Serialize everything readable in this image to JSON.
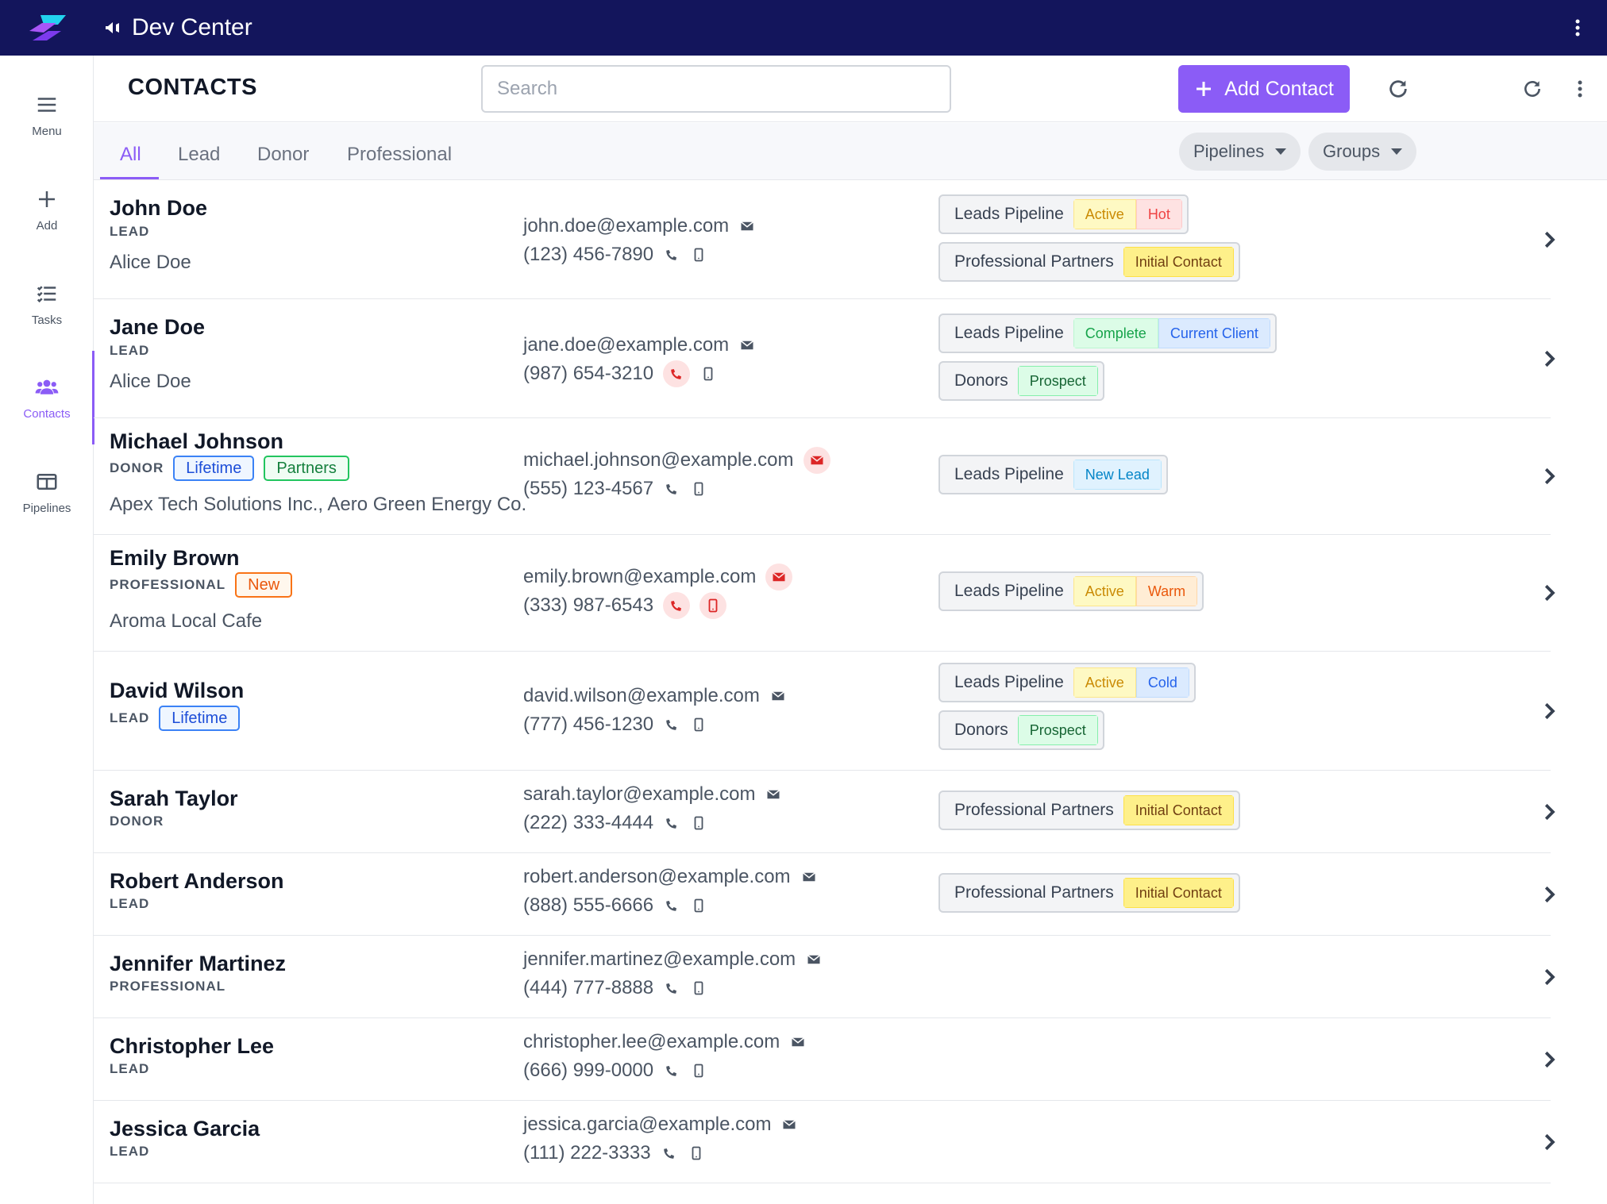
{
  "app": {
    "title": "Dev Center"
  },
  "nav": {
    "menu": "Menu",
    "add": "Add",
    "tasks": "Tasks",
    "contacts": "Contacts",
    "pipelines": "Pipelines"
  },
  "header": {
    "title": "CONTACTS",
    "search_placeholder": "Search",
    "add_label": "Add Contact"
  },
  "tabs": [
    "All",
    "Lead",
    "Donor",
    "Professional"
  ],
  "filters": {
    "pipelines": "Pipelines",
    "groups": "Groups"
  },
  "contacts": [
    {
      "name": "John Doe",
      "type": "LEAD",
      "company": "Alice Doe",
      "email": "john.doe@example.com",
      "phone": "(123) 456-7890",
      "pipelines": [
        {
          "name": "Leads Pipeline",
          "stages": [
            "Active",
            "Hot"
          ]
        },
        {
          "name": "Professional Partners",
          "stages": [
            "Initial Contact"
          ]
        }
      ]
    },
    {
      "name": "Jane Doe",
      "type": "LEAD",
      "company": "Alice Doe",
      "email": "jane.doe@example.com",
      "phone": "(987) 654-3210",
      "pipelines": [
        {
          "name": "Leads Pipeline",
          "stages": [
            "Complete",
            "Current Client"
          ]
        },
        {
          "name": "Donors",
          "stages": [
            "Prospect"
          ]
        }
      ]
    },
    {
      "name": "Michael Johnson",
      "type": "DONOR",
      "tags": [
        "Lifetime",
        "Partners"
      ],
      "company": "Apex Tech Solutions Inc., Aero Green Energy Co.",
      "email": "michael.johnson@example.com",
      "phone": "(555) 123-4567",
      "pipelines": [
        {
          "name": "Leads Pipeline",
          "stages": [
            "New Lead"
          ]
        }
      ]
    },
    {
      "name": "Emily Brown",
      "type": "PROFESSIONAL",
      "tags": [
        "New"
      ],
      "company": "Aroma Local Cafe",
      "email": "emily.brown@example.com",
      "phone": "(333) 987-6543",
      "pipelines": [
        {
          "name": "Leads Pipeline",
          "stages": [
            "Active",
            "Warm"
          ]
        }
      ]
    },
    {
      "name": "David Wilson",
      "type": "LEAD",
      "tags": [
        "Lifetime"
      ],
      "email": "david.wilson@example.com",
      "phone": "(777) 456-1230",
      "pipelines": [
        {
          "name": "Leads Pipeline",
          "stages": [
            "Active",
            "Cold"
          ]
        },
        {
          "name": "Donors",
          "stages": [
            "Prospect"
          ]
        }
      ]
    },
    {
      "name": "Sarah Taylor",
      "type": "DONOR",
      "email": "sarah.taylor@example.com",
      "phone": "(222) 333-4444",
      "pipelines": [
        {
          "name": "Professional Partners",
          "stages": [
            "Initial Contact"
          ]
        }
      ]
    },
    {
      "name": "Robert Anderson",
      "type": "LEAD",
      "email": "robert.anderson@example.com",
      "phone": "(888) 555-6666",
      "pipelines": [
        {
          "name": "Professional Partners",
          "stages": [
            "Initial Contact"
          ]
        }
      ]
    },
    {
      "name": "Jennifer Martinez",
      "type": "PROFESSIONAL",
      "email": "jennifer.martinez@example.com",
      "phone": "(444) 777-8888"
    },
    {
      "name": "Christopher Lee",
      "type": "LEAD",
      "email": "christopher.lee@example.com",
      "phone": "(666) 999-0000"
    },
    {
      "name": "Jessica Garcia",
      "type": "LEAD",
      "email": "jessica.garcia@example.com",
      "phone": "(111) 222-3333"
    }
  ],
  "colors": {
    "topbar": "#13155c",
    "accent": "#8b5cf6",
    "alert": "#dc2626"
  }
}
